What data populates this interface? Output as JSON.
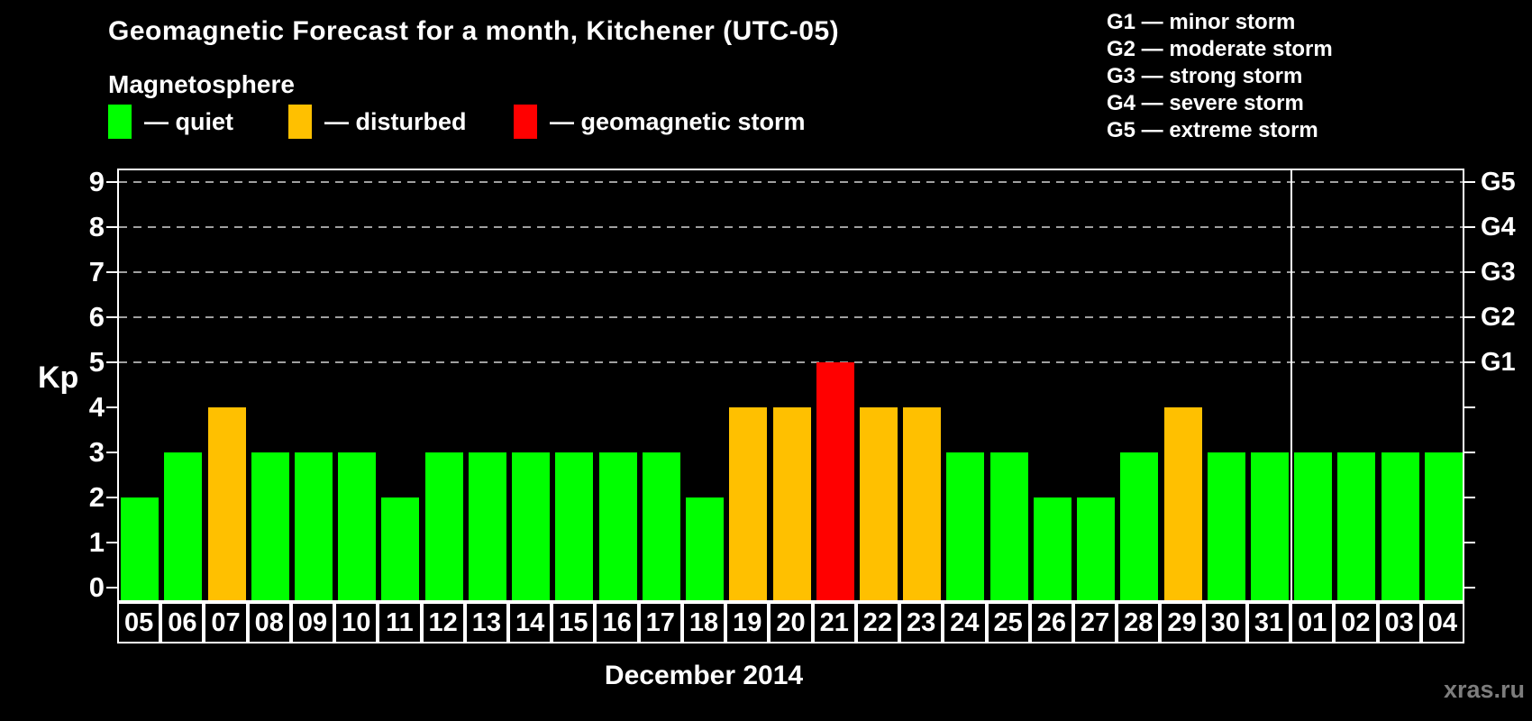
{
  "header": {
    "title": "Geomagnetic Forecast for a month, Kitchener (UTC-05)",
    "subtitle": "Magnetosphere",
    "legend": [
      {
        "label": "— quiet",
        "status": "quiet",
        "color": "#00ff00"
      },
      {
        "label": "— disturbed",
        "status": "disturbed",
        "color": "#ffc000"
      },
      {
        "label": "— geomagnetic storm",
        "status": "storm",
        "color": "#ff0000"
      }
    ],
    "g_scale_legend": [
      "G1 — minor storm",
      "G2 — moderate storm",
      "G3 — strong storm",
      "G4 — severe storm",
      "G5 — extreme storm"
    ]
  },
  "chart_data": {
    "type": "bar",
    "title": "Geomagnetic Forecast for a month, Kitchener (UTC-05)",
    "ylabel_left": "Kp",
    "xlabel": "December 2014",
    "ylim": [
      0,
      9
    ],
    "yticks": [
      0,
      1,
      2,
      3,
      4,
      5,
      6,
      7,
      8,
      9
    ],
    "grid_levels": [
      5,
      6,
      7,
      8,
      9
    ],
    "grid_on": true,
    "right_axis_labels": [
      {
        "kp": 5,
        "label": "G1"
      },
      {
        "kp": 6,
        "label": "G2"
      },
      {
        "kp": 7,
        "label": "G3"
      },
      {
        "kp": 8,
        "label": "G4"
      },
      {
        "kp": 9,
        "label": "G5"
      }
    ],
    "categories": [
      "05",
      "06",
      "07",
      "08",
      "09",
      "10",
      "11",
      "12",
      "13",
      "14",
      "15",
      "16",
      "17",
      "18",
      "19",
      "20",
      "21",
      "22",
      "23",
      "24",
      "25",
      "26",
      "27",
      "28",
      "29",
      "30",
      "31",
      "01",
      "02",
      "03",
      "04"
    ],
    "values": [
      2,
      3,
      4,
      3,
      3,
      3,
      2,
      3,
      3,
      3,
      3,
      3,
      3,
      2,
      4,
      4,
      5,
      4,
      4,
      3,
      3,
      2,
      2,
      3,
      4,
      3,
      3,
      3,
      3,
      3,
      3
    ],
    "statuses": [
      "quiet",
      "quiet",
      "disturbed",
      "quiet",
      "quiet",
      "quiet",
      "quiet",
      "quiet",
      "quiet",
      "quiet",
      "quiet",
      "quiet",
      "quiet",
      "quiet",
      "disturbed",
      "disturbed",
      "storm",
      "disturbed",
      "disturbed",
      "quiet",
      "quiet",
      "quiet",
      "quiet",
      "quiet",
      "disturbed",
      "quiet",
      "quiet",
      "quiet",
      "quiet",
      "quiet",
      "quiet"
    ],
    "colors": {
      "quiet": "#00ff00",
      "disturbed": "#ffc000",
      "storm": "#ff0000"
    },
    "month_separator_after_index": 26,
    "legend_position": "top-left"
  },
  "footer": {
    "month_label": "December 2014",
    "watermark": "xras.ru"
  }
}
